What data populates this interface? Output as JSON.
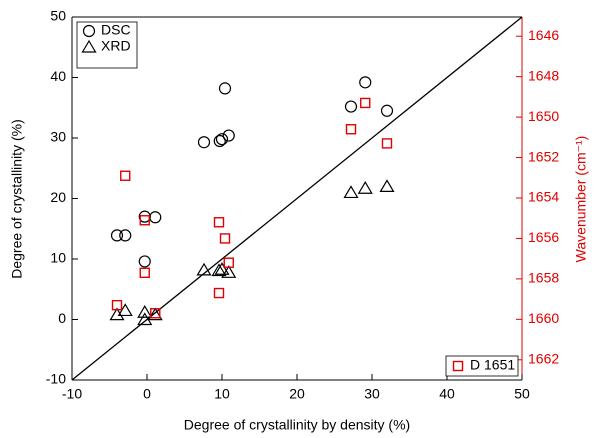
{
  "chart_data": {
    "type": "scatter",
    "xlabel": "Degree of crystallinity by density (%)",
    "ylabel": "Degree of crystallinity (%)",
    "y2label": "Wavenumber (cm⁻¹)",
    "xlim": [
      -10,
      50
    ],
    "xticks": [
      -10,
      0,
      10,
      20,
      30,
      40,
      50
    ],
    "ylim": [
      -10,
      50
    ],
    "yticks": [
      -10,
      0,
      10,
      20,
      30,
      40,
      50
    ],
    "y2lim": [
      1663,
      1645.05
    ],
    "y2ticks": [
      1646,
      1648,
      1650,
      1652,
      1654,
      1656,
      1658,
      1660,
      1662
    ],
    "y2color": "#e00000",
    "series": [
      {
        "name": "DSC",
        "marker": "circle",
        "color": "#000000",
        "x": [
          -4.0,
          -2.9,
          -0.3,
          1.1,
          -0.3,
          7.6,
          9.7,
          10.0,
          10.4,
          10.9,
          27.2,
          29.1,
          32.0
        ],
        "values": [
          13.9,
          13.9,
          17.0,
          16.9,
          9.6,
          29.3,
          29.5,
          29.8,
          38.2,
          30.4,
          35.2,
          39.2,
          34.5
        ]
      },
      {
        "name": "XRD",
        "marker": "triangle",
        "color": "#000000",
        "x": [
          -4.0,
          -2.9,
          -0.3,
          -0.3,
          1.1,
          7.6,
          9.6,
          10.0,
          10.9,
          27.2,
          29.1,
          32.0
        ],
        "values": [
          0.8,
          1.5,
          1.2,
          0.0,
          0.8,
          8.2,
          8.1,
          8.3,
          7.8,
          21.0,
          21.7,
          22.0
        ]
      },
      {
        "name": "D 1651",
        "marker": "square",
        "color": "#e00000",
        "axis": "y2",
        "x": [
          -2.9,
          -4.0,
          -0.3,
          -0.3,
          1.1,
          9.6,
          9.6,
          10.4,
          10.9,
          27.2,
          29.1,
          32.0
        ],
        "values": [
          1652.9,
          1659.3,
          1657.7,
          1655.1,
          1659.7,
          1655.2,
          1658.7,
          1656.0,
          1657.2,
          1650.6,
          1649.3,
          1651.3
        ]
      }
    ]
  }
}
